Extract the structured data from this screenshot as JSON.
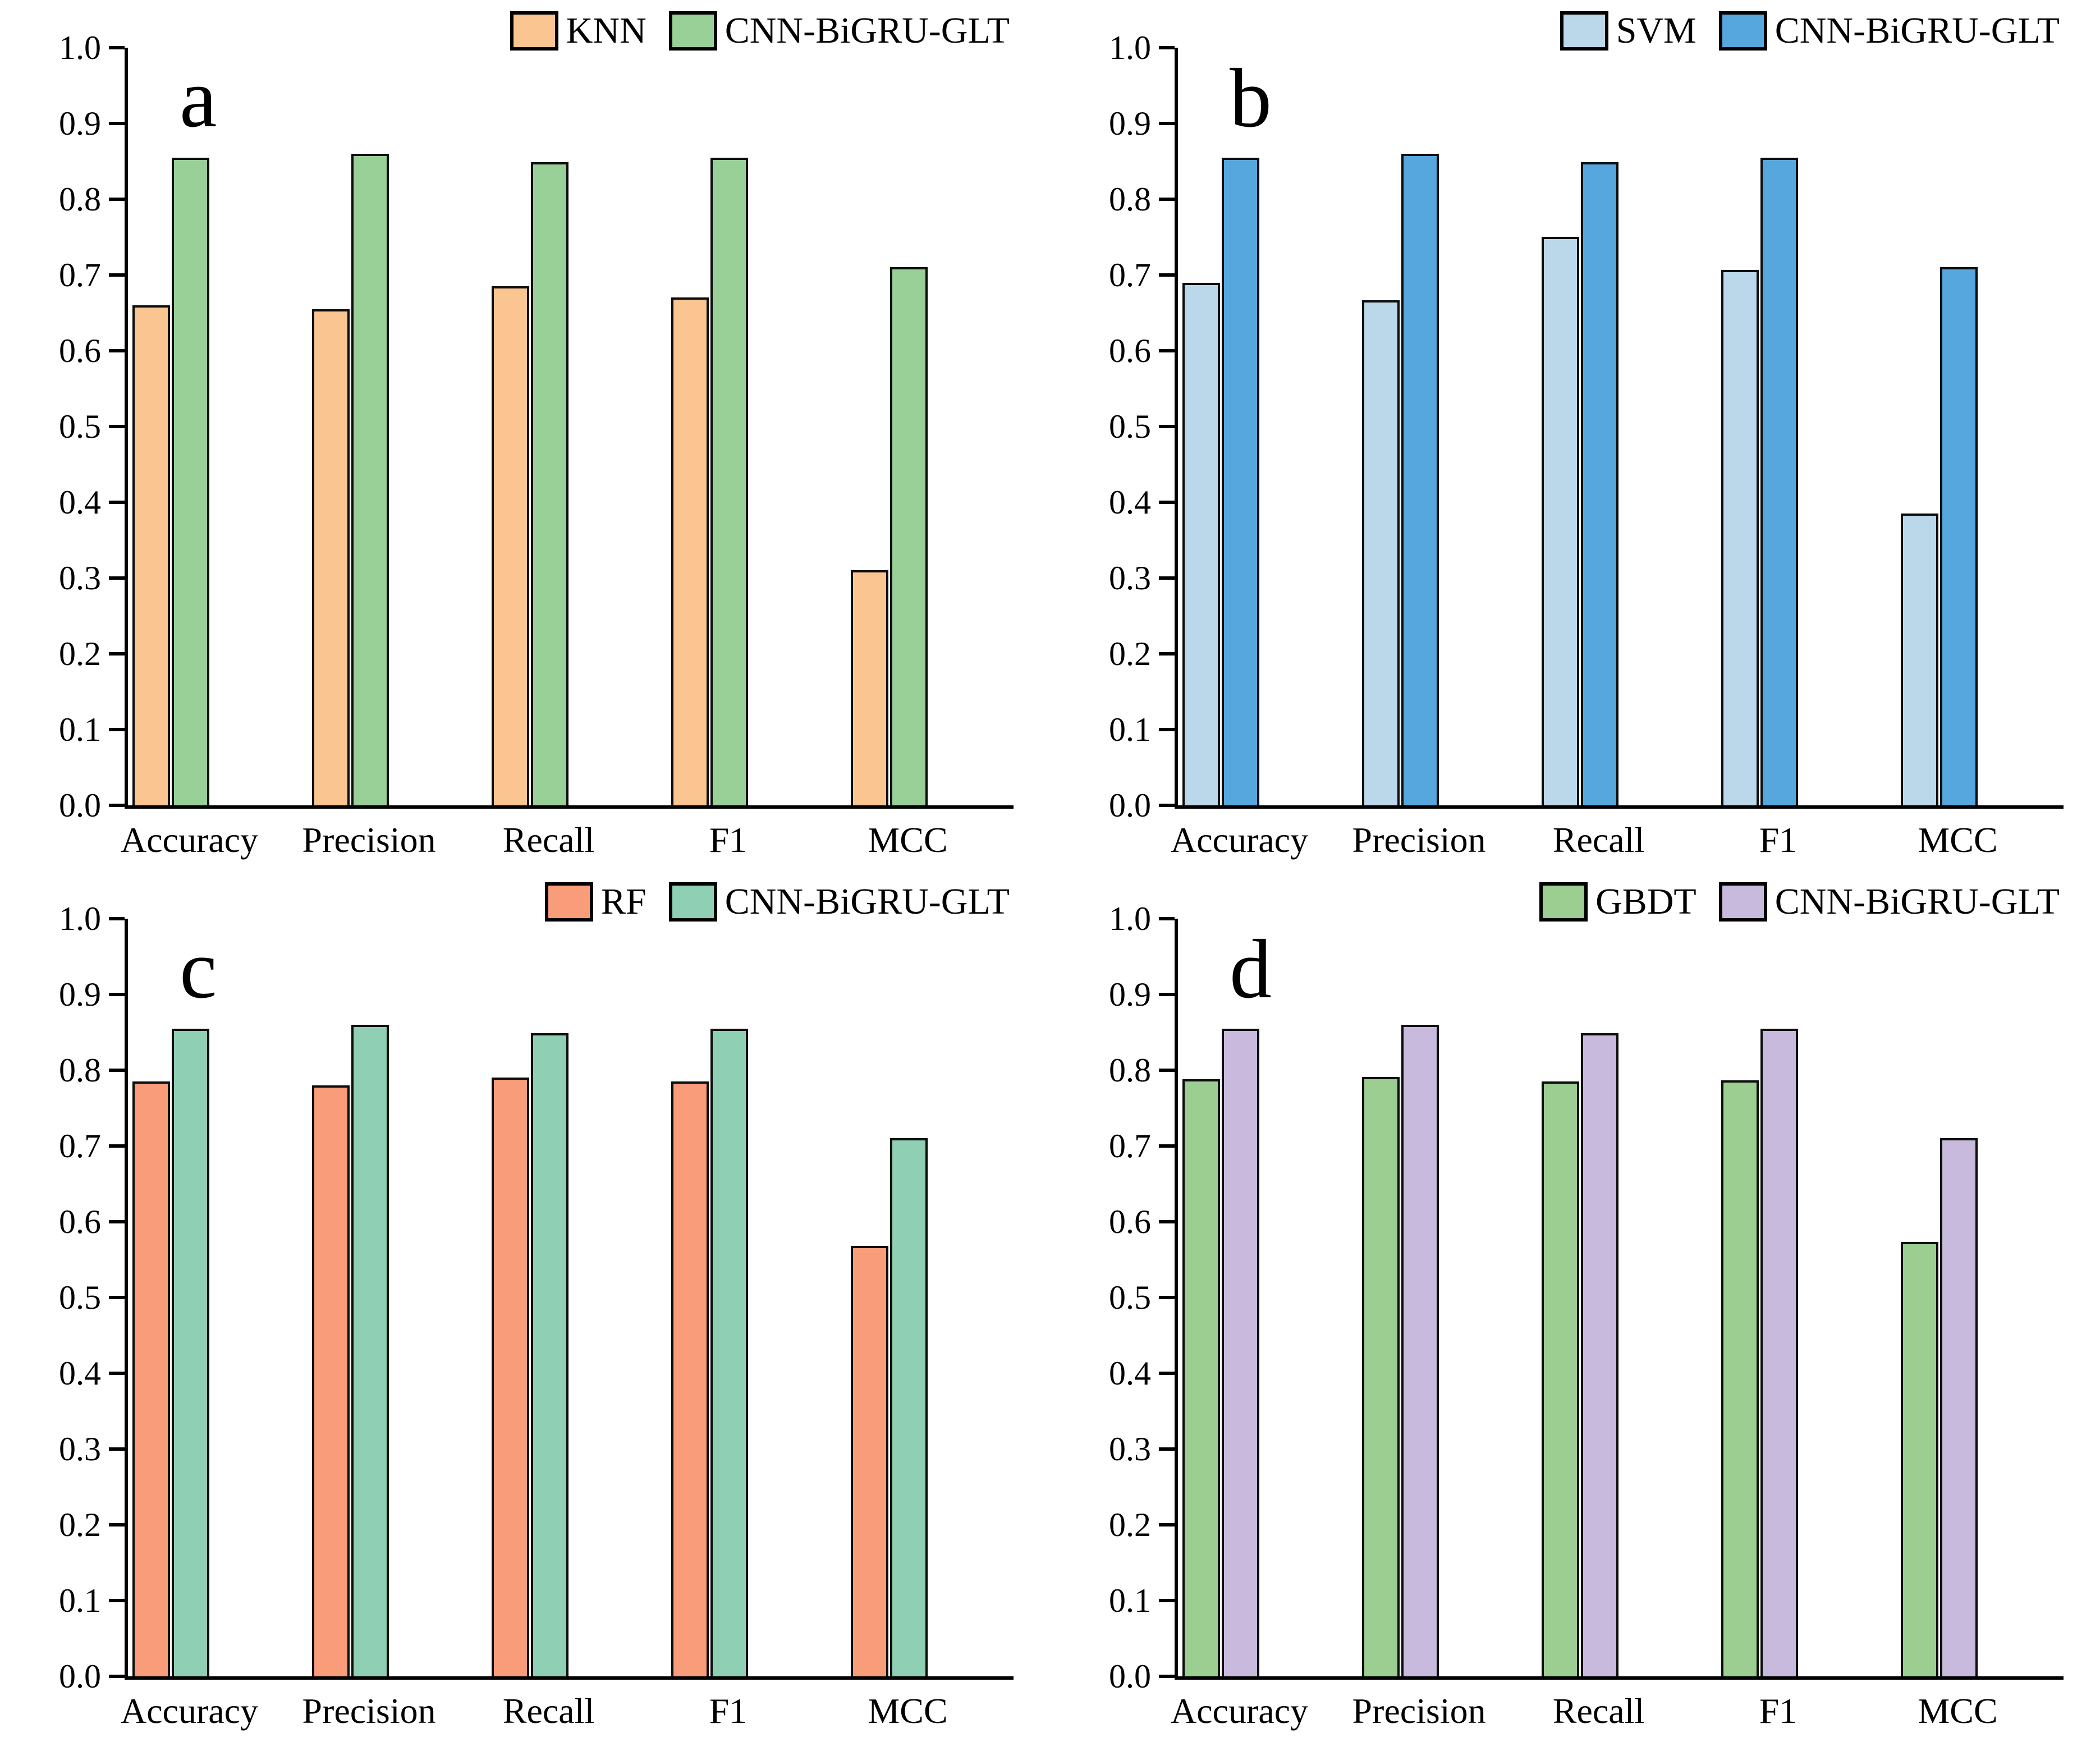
{
  "figure": {
    "background": "#ffffff",
    "axis_color": "#000000",
    "bar_edge_color": "#0d0d0d",
    "rows": 2,
    "cols": 2
  },
  "chart_data": [
    {
      "panel_label": "a",
      "type": "bar",
      "title": "",
      "xlabel": "",
      "ylabel": "",
      "categories": [
        "Accuracy",
        "Precision",
        "Recall",
        "F1",
        "MCC"
      ],
      "series": [
        {
          "name": "KNN",
          "color": "#FAC591",
          "values": [
            0.66,
            0.655,
            0.685,
            0.67,
            0.31
          ]
        },
        {
          "name": "CNN-BiGRU-GLT",
          "color": "#98D098",
          "values": [
            0.855,
            0.86,
            0.849,
            0.855,
            0.71
          ]
        }
      ],
      "ylim": [
        0.0,
        1.0
      ],
      "ytick_step": 0.1,
      "ytick_labels": [
        "0.0",
        "0.1",
        "0.2",
        "0.3",
        "0.4",
        "0.5",
        "0.6",
        "0.7",
        "0.8",
        "0.9",
        "1.0"
      ],
      "grid": false,
      "legend_position": "top-right"
    },
    {
      "panel_label": "b",
      "type": "bar",
      "title": "",
      "xlabel": "",
      "ylabel": "",
      "categories": [
        "Accuracy",
        "Precision",
        "Recall",
        "F1",
        "MCC"
      ],
      "series": [
        {
          "name": "SVM",
          "color": "#BAD8E9",
          "values": [
            0.69,
            0.667,
            0.75,
            0.707,
            0.385
          ]
        },
        {
          "name": "CNN-BiGRU-GLT",
          "color": "#55A7DE",
          "values": [
            0.855,
            0.86,
            0.849,
            0.855,
            0.71
          ]
        }
      ],
      "ylim": [
        0.0,
        1.0
      ],
      "ytick_step": 0.1,
      "ytick_labels": [
        "0.0",
        "0.1",
        "0.2",
        "0.3",
        "0.4",
        "0.5",
        "0.6",
        "0.7",
        "0.8",
        "0.9",
        "1.0"
      ],
      "grid": false,
      "legend_position": "top-right"
    },
    {
      "panel_label": "c",
      "type": "bar",
      "title": "",
      "xlabel": "",
      "ylabel": "",
      "categories": [
        "Accuracy",
        "Precision",
        "Recall",
        "F1",
        "MCC"
      ],
      "series": [
        {
          "name": "RF",
          "color": "#F99C79",
          "values": [
            0.785,
            0.78,
            0.79,
            0.785,
            0.568
          ]
        },
        {
          "name": "CNN-BiGRU-GLT",
          "color": "#8FCFB4",
          "values": [
            0.855,
            0.86,
            0.849,
            0.855,
            0.71
          ]
        }
      ],
      "ylim": [
        0.0,
        1.0
      ],
      "ytick_step": 0.1,
      "ytick_labels": [
        "0.0",
        "0.1",
        "0.2",
        "0.3",
        "0.4",
        "0.5",
        "0.6",
        "0.7",
        "0.8",
        "0.9",
        "1.0"
      ],
      "grid": false,
      "legend_position": "top-right"
    },
    {
      "panel_label": "d",
      "type": "bar",
      "title": "",
      "xlabel": "",
      "ylabel": "",
      "categories": [
        "Accuracy",
        "Precision",
        "Recall",
        "F1",
        "MCC"
      ],
      "series": [
        {
          "name": "GBDT",
          "color": "#9BCE90",
          "values": [
            0.788,
            0.791,
            0.785,
            0.787,
            0.573
          ]
        },
        {
          "name": "CNN-BiGRU-GLT",
          "color": "#C7BADC",
          "values": [
            0.855,
            0.86,
            0.849,
            0.855,
            0.71
          ]
        }
      ],
      "ylim": [
        0.0,
        1.0
      ],
      "ytick_step": 0.1,
      "ytick_labels": [
        "0.0",
        "0.1",
        "0.2",
        "0.3",
        "0.4",
        "0.5",
        "0.6",
        "0.7",
        "0.8",
        "0.9",
        "1.0"
      ],
      "grid": false,
      "legend_position": "top-right"
    }
  ]
}
